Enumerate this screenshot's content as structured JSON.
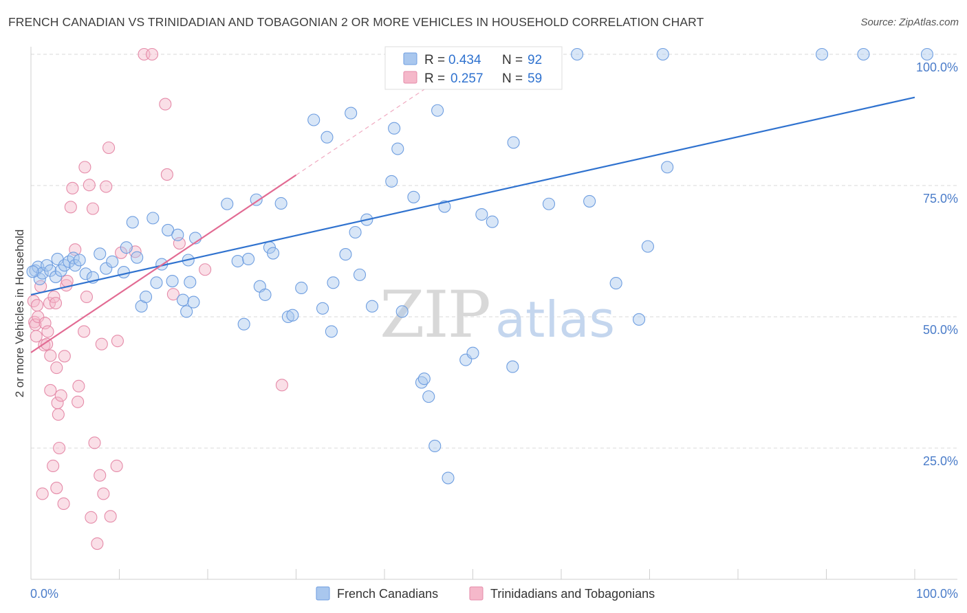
{
  "title": "FRENCH CANADIAN VS TRINIDADIAN AND TOBAGONIAN 2 OR MORE VEHICLES IN HOUSEHOLD CORRELATION CHART",
  "source": "Source: ZipAtlas.com",
  "watermark": {
    "zip": "ZIP",
    "atlas": "atlas"
  },
  "chart_data": {
    "type": "scatter",
    "title": "FRENCH CANADIAN VS TRINIDADIAN AND TOBAGONIAN 2 OR MORE VEHICLES IN HOUSEHOLD CORRELATION CHART",
    "xlabel": "",
    "ylabel": "2 or more Vehicles in Household",
    "xlim": [
      0,
      100
    ],
    "ylim": [
      0,
      100
    ],
    "x_tick_labels": [
      "0.0%",
      "100.0%"
    ],
    "y_ticks": [
      25,
      50,
      75,
      100
    ],
    "y_tick_labels": [
      "25.0%",
      "50.0%",
      "75.0%",
      "100.0%"
    ],
    "grid": true,
    "legend_position": "bottom",
    "colors": {
      "blue": "#a9c7ee",
      "blue_line": "#2f72cf",
      "pink": "#f5b8ca",
      "pink_line": "#e26b93",
      "tick": "#4a7cc9"
    },
    "stats": [
      {
        "r_label": "R =",
        "r_value": "0.434",
        "n_label": "N =",
        "n_value": "92"
      },
      {
        "r_label": "R =",
        "r_value": "0.257",
        "n_label": "N =",
        "n_value": "59"
      }
    ],
    "series": [
      {
        "name": "French Canadians",
        "color": "#a9c7ee",
        "trend": {
          "x": [
            0,
            100
          ],
          "y": [
            54.2,
            91.8
          ]
        },
        "points": [
          [
            0.5,
            58.8
          ],
          [
            0.8,
            59.5
          ],
          [
            1.0,
            57.2
          ],
          [
            1.3,
            58.3
          ],
          [
            1.8,
            59.8
          ],
          [
            2.2,
            58.8
          ],
          [
            2.8,
            57.6
          ],
          [
            3.0,
            61.0
          ],
          [
            3.4,
            58.8
          ],
          [
            3.8,
            59.8
          ],
          [
            4.3,
            60.5
          ],
          [
            4.8,
            61.2
          ],
          [
            5.0,
            59.8
          ],
          [
            5.5,
            60.8
          ],
          [
            6.2,
            58.2
          ],
          [
            7.0,
            57.5
          ],
          [
            7.8,
            62.0
          ],
          [
            8.5,
            59.2
          ],
          [
            9.2,
            60.5
          ],
          [
            10.5,
            58.5
          ],
          [
            10.8,
            63.2
          ],
          [
            11.5,
            68.0
          ],
          [
            12.0,
            61.3
          ],
          [
            12.5,
            52.0
          ],
          [
            13.0,
            53.8
          ],
          [
            13.8,
            68.8
          ],
          [
            14.2,
            56.5
          ],
          [
            14.8,
            60.0
          ],
          [
            15.5,
            66.5
          ],
          [
            16.0,
            56.8
          ],
          [
            16.6,
            65.6
          ],
          [
            17.2,
            53.2
          ],
          [
            17.6,
            51.0
          ],
          [
            17.8,
            60.8
          ],
          [
            18.0,
            56.6
          ],
          [
            18.4,
            52.8
          ],
          [
            18.6,
            65.0
          ],
          [
            22.2,
            71.5
          ],
          [
            23.4,
            60.6
          ],
          [
            24.1,
            48.6
          ],
          [
            24.6,
            61.0
          ],
          [
            25.5,
            72.3
          ],
          [
            25.9,
            55.8
          ],
          [
            26.5,
            54.2
          ],
          [
            27.0,
            63.2
          ],
          [
            27.4,
            62.1
          ],
          [
            28.3,
            71.6
          ],
          [
            29.1,
            50.0
          ],
          [
            29.6,
            50.3
          ],
          [
            30.6,
            55.5
          ],
          [
            32.0,
            87.5
          ],
          [
            33.0,
            51.6
          ],
          [
            33.5,
            84.2
          ],
          [
            34.0,
            47.2
          ],
          [
            34.2,
            56.5
          ],
          [
            35.6,
            61.9
          ],
          [
            36.2,
            88.8
          ],
          [
            36.7,
            66.1
          ],
          [
            37.2,
            58.0
          ],
          [
            38.0,
            68.5
          ],
          [
            38.6,
            52.0
          ],
          [
            40.8,
            75.8
          ],
          [
            41.1,
            85.9
          ],
          [
            41.5,
            82.0
          ],
          [
            42.0,
            51.0
          ],
          [
            43.3,
            72.8
          ],
          [
            44.2,
            37.5
          ],
          [
            44.5,
            38.2
          ],
          [
            45.0,
            34.8
          ],
          [
            45.7,
            25.4
          ],
          [
            46.0,
            89.3
          ],
          [
            46.8,
            71.0
          ],
          [
            47.2,
            19.3
          ],
          [
            49.2,
            41.8
          ],
          [
            50.0,
            43.1
          ],
          [
            51.0,
            69.5
          ],
          [
            52.2,
            68.1
          ],
          [
            54.5,
            40.5
          ],
          [
            54.6,
            83.2
          ],
          [
            58.6,
            71.5
          ],
          [
            59.3,
            100.0
          ],
          [
            61.8,
            100.0
          ],
          [
            63.2,
            72.0
          ],
          [
            66.2,
            56.4
          ],
          [
            68.8,
            49.5
          ],
          [
            69.8,
            63.4
          ],
          [
            71.5,
            100.0
          ],
          [
            72.0,
            78.5
          ],
          [
            89.5,
            100.0
          ],
          [
            94.2,
            100.0
          ],
          [
            101.4,
            100.0
          ],
          [
            0.2,
            58.6
          ]
        ]
      },
      {
        "name": "Trinidadians and Tobagonians",
        "color": "#f5b8ca",
        "trend": {
          "x": [
            0,
            30
          ],
          "y": [
            43.2,
            77.0
          ]
        },
        "trend_dashed": {
          "x": [
            30,
            46
          ],
          "y": [
            77.0,
            95.0
          ]
        },
        "points": [
          [
            0.3,
            53.0
          ],
          [
            0.4,
            49.0
          ],
          [
            0.5,
            48.5
          ],
          [
            0.6,
            46.3
          ],
          [
            0.7,
            52.2
          ],
          [
            0.8,
            50.0
          ],
          [
            1.1,
            55.8
          ],
          [
            1.3,
            16.3
          ],
          [
            1.5,
            44.6
          ],
          [
            1.6,
            48.8
          ],
          [
            1.8,
            44.8
          ],
          [
            1.9,
            47.2
          ],
          [
            2.1,
            52.6
          ],
          [
            2.2,
            36.0
          ],
          [
            2.2,
            42.6
          ],
          [
            2.5,
            21.6
          ],
          [
            2.6,
            53.8
          ],
          [
            2.8,
            52.6
          ],
          [
            2.9,
            17.4
          ],
          [
            2.9,
            40.3
          ],
          [
            3.0,
            33.6
          ],
          [
            3.1,
            31.4
          ],
          [
            3.2,
            25.0
          ],
          [
            3.4,
            35.0
          ],
          [
            3.7,
            14.4
          ],
          [
            3.8,
            42.5
          ],
          [
            4.0,
            56.0
          ],
          [
            4.1,
            56.8
          ],
          [
            4.5,
            70.9
          ],
          [
            4.7,
            74.5
          ],
          [
            5.0,
            62.8
          ],
          [
            5.3,
            33.8
          ],
          [
            5.4,
            36.8
          ],
          [
            6.0,
            47.2
          ],
          [
            6.1,
            78.5
          ],
          [
            6.3,
            53.8
          ],
          [
            6.6,
            75.1
          ],
          [
            6.8,
            11.8
          ],
          [
            7.0,
            70.6
          ],
          [
            7.2,
            26.0
          ],
          [
            7.5,
            6.8
          ],
          [
            7.8,
            19.8
          ],
          [
            8.0,
            44.8
          ],
          [
            8.2,
            16.3
          ],
          [
            8.5,
            74.8
          ],
          [
            8.8,
            82.2
          ],
          [
            9.0,
            12.0
          ],
          [
            9.7,
            21.6
          ],
          [
            9.8,
            45.4
          ],
          [
            10.2,
            62.2
          ],
          [
            11.8,
            62.4
          ],
          [
            12.8,
            100.0
          ],
          [
            13.7,
            100.0
          ],
          [
            15.2,
            90.5
          ],
          [
            15.4,
            77.1
          ],
          [
            16.1,
            54.3
          ],
          [
            16.8,
            64.0
          ],
          [
            19.7,
            59.0
          ],
          [
            28.4,
            37.0
          ]
        ]
      }
    ]
  }
}
